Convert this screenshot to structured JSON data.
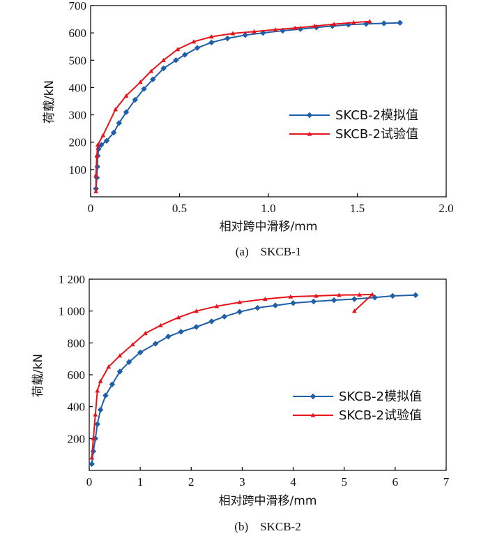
{
  "chart_data": [
    {
      "type": "line",
      "id": "a",
      "caption": "(a) SKCB-1",
      "title": "",
      "xlabel": "相对跨中滑移/mm",
      "ylabel": "荷载/kN",
      "xlim": [
        0,
        2.0
      ],
      "ylim": [
        0,
        700
      ],
      "xticks": [
        0,
        0.5,
        1.0,
        1.5,
        2.0
      ],
      "xtick_labels": [
        "0",
        "0.5",
        "1.0",
        "1.5",
        "2.0"
      ],
      "yticks": [
        100,
        200,
        300,
        400,
        500,
        600,
        700
      ],
      "ytick_labels": [
        "100",
        "200",
        "300",
        "400",
        "500",
        "600",
        "700"
      ],
      "grid": false,
      "legend_position": "center-right",
      "series": [
        {
          "name": "SKCB-2模拟值",
          "color": "#1f5fa8",
          "marker": "diamond",
          "x": [
            0.03,
            0.035,
            0.038,
            0.04,
            0.045,
            0.06,
            0.09,
            0.13,
            0.16,
            0.2,
            0.25,
            0.3,
            0.35,
            0.41,
            0.48,
            0.53,
            0.6,
            0.68,
            0.77,
            0.87,
            0.97,
            1.08,
            1.18,
            1.27,
            1.36,
            1.45,
            1.55,
            1.65,
            1.74
          ],
          "y": [
            30,
            70,
            110,
            150,
            175,
            190,
            205,
            235,
            270,
            310,
            355,
            395,
            430,
            470,
            500,
            520,
            545,
            565,
            580,
            592,
            600,
            608,
            614,
            620,
            625,
            630,
            633,
            635,
            637
          ]
        },
        {
          "name": "SKCB-2试验值",
          "color": "#e8141c",
          "marker": "triangle",
          "x": [
            0.03,
            0.03,
            0.035,
            0.04,
            0.07,
            0.14,
            0.2,
            0.28,
            0.34,
            0.41,
            0.49,
            0.58,
            0.68,
            0.8,
            0.92,
            1.04,
            1.15,
            1.26,
            1.37,
            1.48,
            1.57
          ],
          "y": [
            20,
            80,
            150,
            190,
            225,
            320,
            370,
            420,
            460,
            500,
            540,
            568,
            586,
            598,
            605,
            612,
            618,
            625,
            632,
            638,
            642
          ]
        }
      ]
    },
    {
      "type": "line",
      "id": "b",
      "caption": "(b) SKCB-2",
      "title": "",
      "xlabel": "相对跨中滑移/mm",
      "ylabel": "荷载/kN",
      "xlim": [
        0,
        7
      ],
      "ylim": [
        0,
        1200
      ],
      "xticks": [
        0,
        1,
        2,
        3,
        4,
        5,
        6,
        7
      ],
      "xtick_labels": [
        "0",
        "1",
        "2",
        "3",
        "4",
        "5",
        "6",
        "7"
      ],
      "yticks": [
        200,
        400,
        600,
        800,
        1000,
        1200
      ],
      "ytick_labels": [
        "200",
        "400",
        "600",
        "800",
        "1 000",
        "1 200"
      ],
      "grid": false,
      "legend_position": "center-right",
      "series": [
        {
          "name": "SKCB-2模拟值",
          "color": "#1f5fa8",
          "marker": "diamond",
          "x": [
            0.05,
            0.08,
            0.12,
            0.16,
            0.22,
            0.32,
            0.45,
            0.6,
            0.78,
            1.0,
            1.3,
            1.55,
            1.8,
            2.1,
            2.4,
            2.65,
            2.95,
            3.3,
            3.65,
            4.0,
            4.4,
            4.8,
            5.2,
            5.6,
            5.95,
            6.4
          ],
          "y": [
            40,
            120,
            200,
            290,
            380,
            470,
            540,
            620,
            680,
            740,
            795,
            840,
            870,
            900,
            935,
            965,
            995,
            1020,
            1035,
            1050,
            1060,
            1068,
            1075,
            1085,
            1095,
            1100
          ]
        },
        {
          "name": "SKCB-2试验值",
          "color": "#e8141c",
          "marker": "triangle",
          "x": [
            0.05,
            0.08,
            0.12,
            0.16,
            0.22,
            0.38,
            0.6,
            0.85,
            1.1,
            1.4,
            1.75,
            2.1,
            2.5,
            2.95,
            3.45,
            3.95,
            4.45,
            4.9,
            5.3,
            5.55,
            5.2
          ],
          "y": [
            80,
            200,
            350,
            500,
            560,
            650,
            720,
            790,
            860,
            910,
            960,
            1000,
            1030,
            1055,
            1075,
            1090,
            1095,
            1100,
            1102,
            1104,
            1000
          ]
        }
      ]
    }
  ]
}
